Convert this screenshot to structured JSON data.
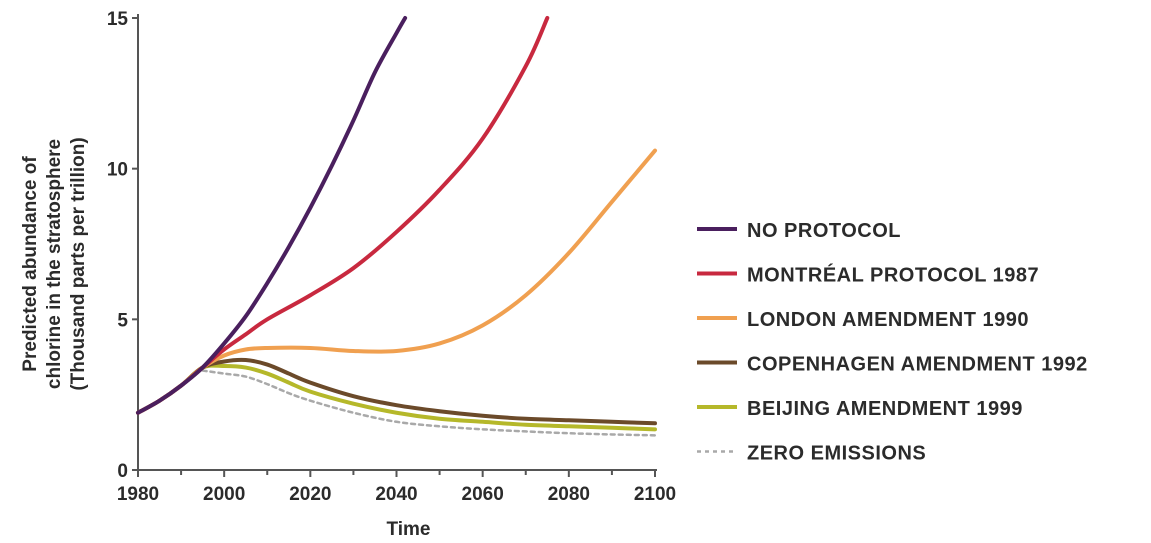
{
  "chart_data": {
    "type": "line",
    "title": "",
    "xlabel": "Time",
    "ylabel": "Predicted abundance of chlorine in the stratosphere (Thousand parts per trillion)",
    "ylabel_lines": [
      "Predicted abundance of",
      "chlorine in the stratosphere",
      "(Thousand parts per trillion)"
    ],
    "xlim": [
      1980,
      2100
    ],
    "ylim": [
      0,
      15
    ],
    "xticks": [
      1980,
      2000,
      2020,
      2040,
      2060,
      2080,
      2100
    ],
    "yticks": [
      0,
      5,
      10,
      15
    ],
    "grid": false,
    "legend_position": "right",
    "series": [
      {
        "name": "NO PROTOCOL",
        "color": "#4a1f5e",
        "dash": false,
        "x": [
          1980,
          1985,
          1990,
          1995,
          2000,
          2005,
          2010,
          2015,
          2020,
          2025,
          2030,
          2035,
          2040,
          2042
        ],
        "y": [
          1.9,
          2.3,
          2.8,
          3.4,
          4.2,
          5.1,
          6.2,
          7.4,
          8.7,
          10.1,
          11.6,
          13.2,
          14.5,
          15.0
        ]
      },
      {
        "name": "MONTRÉAL PROTOCOL 1987",
        "color": "#c8293f",
        "dash": false,
        "x": [
          1980,
          1985,
          1990,
          1995,
          2000,
          2005,
          2010,
          2020,
          2030,
          2040,
          2050,
          2060,
          2070,
          2075
        ],
        "y": [
          1.9,
          2.3,
          2.8,
          3.4,
          4.0,
          4.5,
          5.0,
          5.8,
          6.7,
          7.9,
          9.3,
          11.0,
          13.4,
          15.0
        ]
      },
      {
        "name": "LONDON AMENDMENT 1990",
        "color": "#f0a050",
        "dash": false,
        "x": [
          1980,
          1985,
          1990,
          1995,
          2000,
          2005,
          2010,
          2020,
          2030,
          2040,
          2050,
          2060,
          2070,
          2080,
          2090,
          2100
        ],
        "y": [
          1.9,
          2.3,
          2.8,
          3.4,
          3.8,
          4.0,
          4.05,
          4.05,
          3.95,
          3.95,
          4.2,
          4.8,
          5.8,
          7.2,
          8.9,
          10.6
        ]
      },
      {
        "name": "COPENHAGEN AMENDMENT 1992",
        "color": "#6b4a2a",
        "dash": false,
        "x": [
          1980,
          1985,
          1990,
          1995,
          2000,
          2005,
          2010,
          2015,
          2020,
          2030,
          2040,
          2050,
          2060,
          2070,
          2080,
          2090,
          2100
        ],
        "y": [
          1.9,
          2.3,
          2.8,
          3.4,
          3.6,
          3.65,
          3.5,
          3.2,
          2.9,
          2.45,
          2.15,
          1.95,
          1.8,
          1.7,
          1.65,
          1.6,
          1.55
        ]
      },
      {
        "name": "BEIJING AMENDMENT 1999",
        "color": "#b5b82a",
        "dash": false,
        "x": [
          1980,
          1985,
          1990,
          1995,
          2000,
          2005,
          2010,
          2015,
          2020,
          2030,
          2040,
          2050,
          2060,
          2070,
          2080,
          2090,
          2100
        ],
        "y": [
          1.9,
          2.3,
          2.8,
          3.4,
          3.45,
          3.4,
          3.2,
          2.9,
          2.6,
          2.2,
          1.9,
          1.7,
          1.6,
          1.5,
          1.45,
          1.4,
          1.35
        ]
      },
      {
        "name": "ZERO EMISSIONS",
        "color": "#a9a9a9",
        "dash": true,
        "x": [
          1995,
          2000,
          2005,
          2010,
          2015,
          2020,
          2030,
          2040,
          2050,
          2060,
          2070,
          2080,
          2090,
          2100
        ],
        "y": [
          3.3,
          3.2,
          3.1,
          2.85,
          2.55,
          2.3,
          1.9,
          1.6,
          1.45,
          1.35,
          1.28,
          1.22,
          1.18,
          1.15
        ]
      }
    ]
  }
}
